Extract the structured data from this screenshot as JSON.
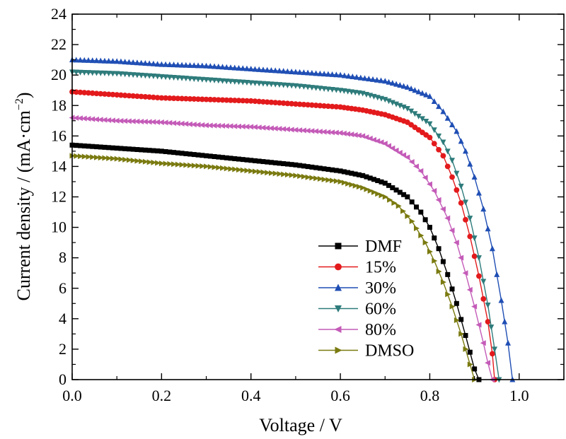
{
  "chart_data": {
    "type": "line",
    "title": "",
    "xlabel": "Voltage / V",
    "ylabel_prefix": "Current density / (mA·cm",
    "ylabel_superscript": "−2",
    "ylabel_suffix": ")",
    "xlim": [
      0.0,
      1.1
    ],
    "ylim": [
      0,
      24
    ],
    "xticks": [
      0.0,
      0.2,
      0.4,
      0.6,
      0.8,
      1.0
    ],
    "xtick_labels": [
      "0.0",
      "0.2",
      "0.4",
      "0.6",
      "0.8",
      "1.0"
    ],
    "yticks": [
      0,
      2,
      4,
      6,
      8,
      10,
      12,
      14,
      16,
      18,
      20,
      22,
      24
    ],
    "ytick_labels": [
      "0",
      "2",
      "4",
      "6",
      "8",
      "10",
      "12",
      "14",
      "16",
      "18",
      "20",
      "22",
      "24"
    ],
    "grid": false,
    "legend_position": "bottom-right",
    "series": [
      {
        "name": "DMF",
        "color": "#000000",
        "marker": "square",
        "x": [
          0.0,
          0.1,
          0.2,
          0.3,
          0.4,
          0.5,
          0.6,
          0.65,
          0.7,
          0.75,
          0.78,
          0.8,
          0.82,
          0.84,
          0.86,
          0.88,
          0.89,
          0.9,
          0.91
        ],
        "y": [
          15.4,
          15.2,
          15.0,
          14.7,
          14.4,
          14.1,
          13.7,
          13.4,
          12.9,
          12.0,
          11.0,
          10.0,
          8.6,
          6.9,
          5.0,
          2.9,
          1.8,
          0.7,
          0.0
        ]
      },
      {
        "name": "15%",
        "color": "#e31a1c",
        "marker": "circle",
        "x": [
          0.0,
          0.1,
          0.2,
          0.3,
          0.4,
          0.5,
          0.6,
          0.65,
          0.7,
          0.75,
          0.8,
          0.83,
          0.85,
          0.87,
          0.89,
          0.91,
          0.93,
          0.94,
          0.945
        ],
        "y": [
          18.9,
          18.7,
          18.5,
          18.4,
          18.3,
          18.1,
          17.9,
          17.7,
          17.4,
          16.9,
          15.9,
          14.7,
          13.3,
          11.6,
          9.4,
          6.8,
          3.8,
          1.7,
          0.0
        ]
      },
      {
        "name": "30%",
        "color": "#1f4eb4",
        "marker": "triangle-up",
        "x": [
          0.0,
          0.1,
          0.2,
          0.3,
          0.4,
          0.5,
          0.6,
          0.7,
          0.75,
          0.8,
          0.83,
          0.86,
          0.88,
          0.9,
          0.92,
          0.94,
          0.96,
          0.975,
          0.985
        ],
        "y": [
          21.0,
          20.9,
          20.7,
          20.6,
          20.4,
          20.2,
          20.0,
          19.6,
          19.2,
          18.6,
          17.6,
          16.3,
          15.0,
          13.3,
          11.2,
          8.6,
          5.2,
          2.4,
          0.0
        ]
      },
      {
        "name": "60%",
        "color": "#2e7b7b",
        "marker": "triangle-down",
        "x": [
          0.0,
          0.1,
          0.2,
          0.3,
          0.4,
          0.5,
          0.6,
          0.65,
          0.7,
          0.75,
          0.8,
          0.83,
          0.85,
          0.87,
          0.89,
          0.91,
          0.93,
          0.945,
          0.955
        ],
        "y": [
          20.2,
          20.1,
          19.9,
          19.7,
          19.5,
          19.3,
          19.0,
          18.8,
          18.4,
          17.8,
          16.8,
          15.6,
          14.4,
          12.7,
          10.6,
          8.0,
          4.9,
          2.0,
          0.0
        ]
      },
      {
        "name": "80%",
        "color": "#c45bb8",
        "marker": "triangle-left",
        "x": [
          0.0,
          0.1,
          0.2,
          0.3,
          0.4,
          0.5,
          0.6,
          0.65,
          0.7,
          0.75,
          0.78,
          0.81,
          0.84,
          0.86,
          0.88,
          0.9,
          0.92,
          0.93,
          0.94
        ],
        "y": [
          17.2,
          17.0,
          16.9,
          16.7,
          16.6,
          16.4,
          16.2,
          16.0,
          15.5,
          14.6,
          13.7,
          12.4,
          10.6,
          9.0,
          7.0,
          4.8,
          2.4,
          1.1,
          0.0
        ]
      },
      {
        "name": "DMSO",
        "color": "#7a7a10",
        "marker": "triangle-right",
        "x": [
          0.0,
          0.1,
          0.2,
          0.3,
          0.4,
          0.5,
          0.6,
          0.65,
          0.7,
          0.73,
          0.76,
          0.79,
          0.81,
          0.83,
          0.85,
          0.87,
          0.88,
          0.89,
          0.9
        ],
        "y": [
          14.7,
          14.5,
          14.2,
          14.0,
          13.7,
          13.4,
          13.0,
          12.6,
          12.0,
          11.4,
          10.4,
          9.0,
          7.8,
          6.4,
          4.8,
          3.0,
          2.0,
          1.0,
          0.0
        ]
      }
    ]
  }
}
